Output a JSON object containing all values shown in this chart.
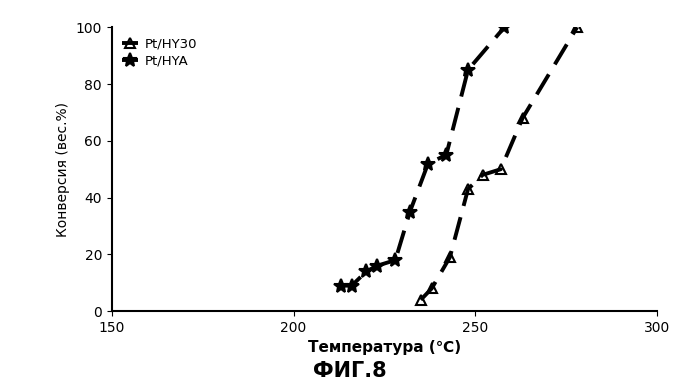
{
  "hy30_x": [
    235,
    238,
    243,
    248,
    252,
    257,
    263,
    278
  ],
  "hy30_y": [
    4,
    8,
    19,
    43,
    48,
    50,
    68,
    100
  ],
  "hya_x": [
    213,
    216,
    220,
    223,
    228,
    232,
    237,
    242,
    248,
    258
  ],
  "hya_y": [
    9,
    9,
    14,
    16,
    18,
    35,
    52,
    55,
    85,
    100
  ],
  "xlabel": "Температура (℃)",
  "ylabel": "Конверсия (вес.%)",
  "title": "ФИГ.8",
  "xlim": [
    150,
    300
  ],
  "ylim": [
    0,
    100
  ],
  "xticks": [
    150,
    200,
    250,
    300
  ],
  "yticks": [
    0,
    20,
    40,
    60,
    80,
    100
  ],
  "legend_hy30": "Pt/HY30",
  "legend_hya": "Pt/HYA",
  "line_color": "#000000",
  "bg_color": "#ffffff"
}
